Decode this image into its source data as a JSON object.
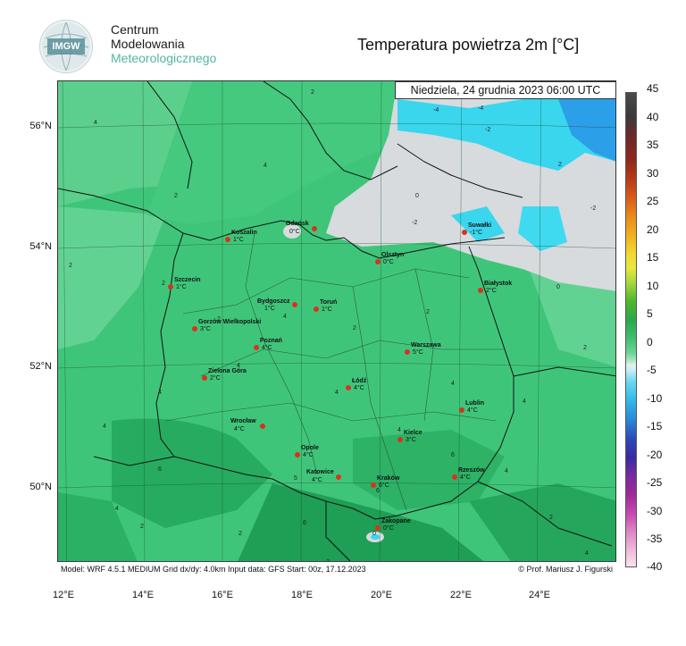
{
  "header": {
    "logo_text": "IMGW",
    "org_line1": "Centrum",
    "org_line2": "Modelowania",
    "org_line3": "Meteorologicznego",
    "title": "Temperatura powietrza 2m [°C]"
  },
  "map": {
    "valid_time": "Niedziela, 24 grudnia 2023 06:00 UTC",
    "footer_left": "Model: WRF 4.5.1 MEDIUM   Grid dx/dy: 4.0km   Input data: GFS   Start: 00z, 17.12.2023",
    "footer_right": "© Prof. Mariusz J. Figurski",
    "lat_labels": [
      "56°N",
      "54°N",
      "52°N",
      "50°N"
    ],
    "lon_labels": [
      "12°E",
      "14°E",
      "16°E",
      "18°E",
      "20°E",
      "22°E",
      "24°E"
    ],
    "colors": {
      "warm_0_5": "#3fc57a",
      "light_green": "#6bd69a",
      "dark_green": "#22a65a",
      "gray_neg0": "#d6dadb",
      "cyan_neg": "#33d9f0",
      "blue_neg": "#2a9be8"
    },
    "cities": [
      {
        "name": "Koszalin",
        "temp": "1°C"
      },
      {
        "name": "Gdańsk",
        "temp": "0°C"
      },
      {
        "name": "Suwałki",
        "temp": "-1°C"
      },
      {
        "name": "Olsztyn",
        "temp": "0°C"
      },
      {
        "name": "Szczecin",
        "temp": "1°C"
      },
      {
        "name": "Białystok",
        "temp": "2°C"
      },
      {
        "name": "Bydgoszcz",
        "temp": "1°C"
      },
      {
        "name": "Toruń",
        "temp": "1°C"
      },
      {
        "name": "Gorzów Wielkopolski",
        "temp": "3°C"
      },
      {
        "name": "Poznań",
        "temp": "4°C"
      },
      {
        "name": "Warszawa",
        "temp": "5°C"
      },
      {
        "name": "Zielona Góra",
        "temp": "2°C"
      },
      {
        "name": "Łódź",
        "temp": "4°C"
      },
      {
        "name": "Lublin",
        "temp": "4°C"
      },
      {
        "name": "Wrocław",
        "temp": "4°C"
      },
      {
        "name": "Kielce",
        "temp": "3°C"
      },
      {
        "name": "Opole",
        "temp": "4°C"
      },
      {
        "name": "Katowice",
        "temp": "4°C"
      },
      {
        "name": "Rzeszów",
        "temp": "4°C"
      },
      {
        "name": "Kraków",
        "temp": "6°C"
      },
      {
        "name": "Zakopane",
        "temp": "0°C"
      }
    ]
  },
  "colorbar": {
    "labels": [
      "45",
      "40",
      "35",
      "30",
      "25",
      "20",
      "15",
      "10",
      "5",
      "0",
      "-5",
      "-10",
      "-15",
      "-20",
      "-25",
      "-30",
      "-35",
      "-40"
    ]
  }
}
